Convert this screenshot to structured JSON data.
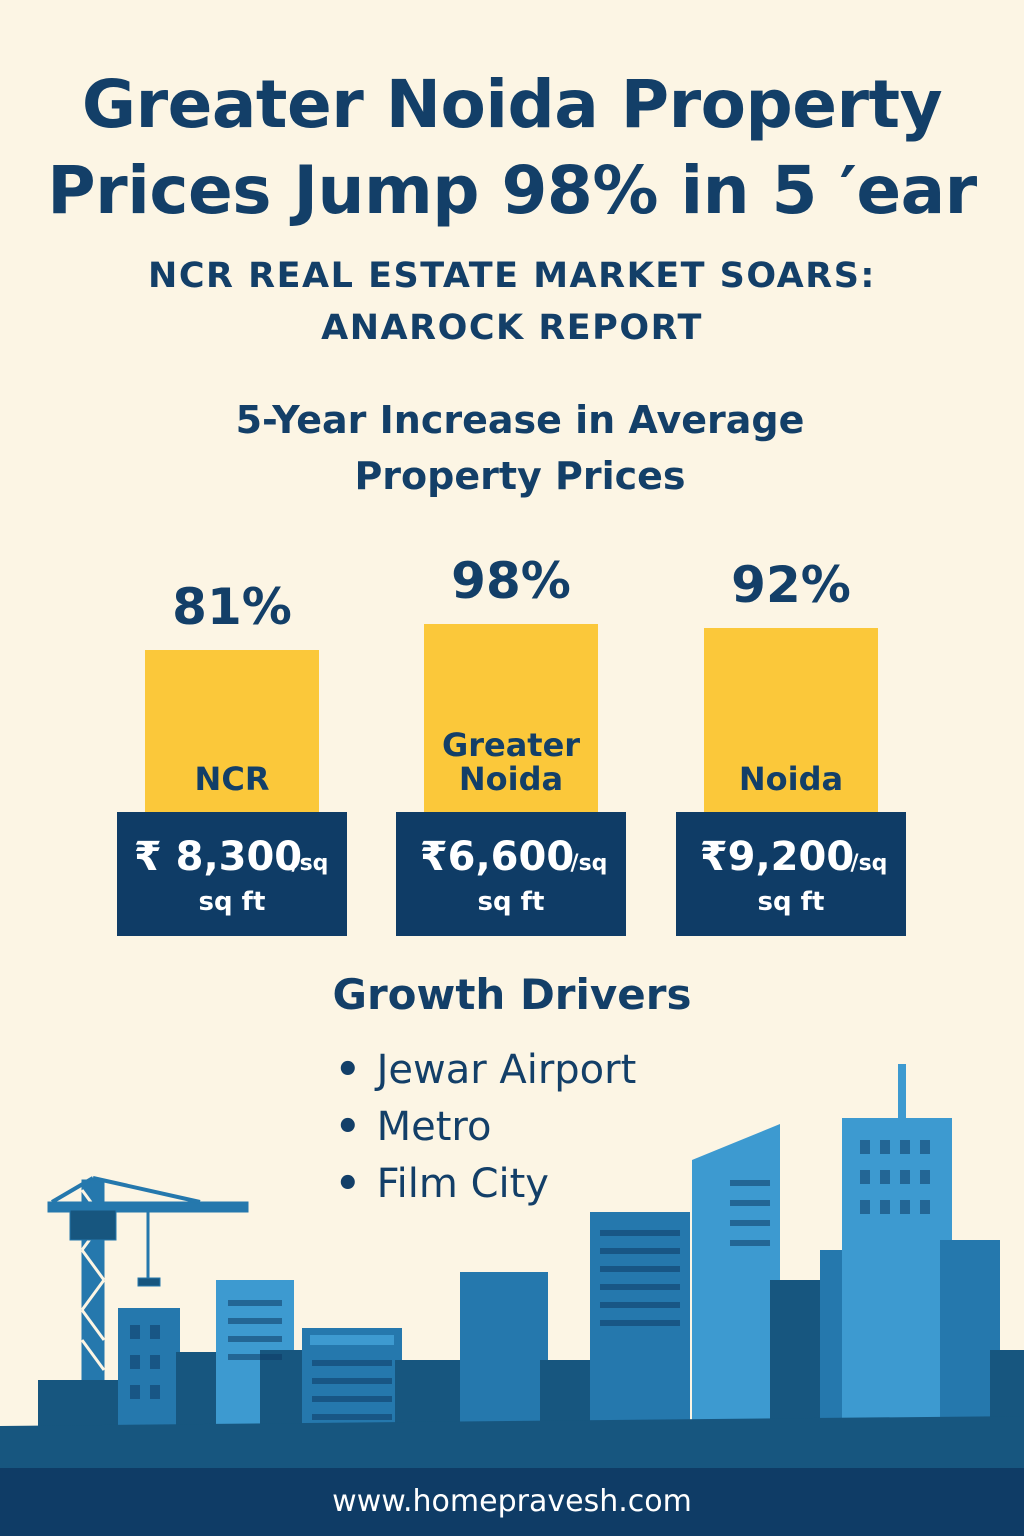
{
  "header": {
    "title_line1": "Greater Noida Property",
    "title_line2": "Prices Jump 98% in 5 ′ear",
    "subtitle_line1": "NCR REAL ESTATE MARKET SOARS:",
    "subtitle_line2": "ANAROCK REPORT"
  },
  "chart_data": {
    "type": "bar",
    "title": "5-Year Increase in Average Property Prices",
    "title_line1": "5-Year Increase in Average",
    "title_line2": "Property Prices",
    "categories": [
      "NCR",
      "Greater Noida",
      "Noida"
    ],
    "values": [
      81,
      98,
      92
    ],
    "value_labels": [
      "81%",
      "98%",
      "92%"
    ],
    "prices": [
      "₹ 8,300",
      "₹6,600",
      "₹9,200"
    ],
    "price_unit_top": "/sq",
    "price_unit_bottom": "sq ft",
    "bar_color": "#fbc83a",
    "price_box_color": "#0f3c66"
  },
  "drivers": {
    "title": "Growth Drivers",
    "items": [
      "Jewar Airport",
      "Metro",
      "Film City"
    ]
  },
  "footer": {
    "url": "www.homepravesh.com"
  },
  "colors": {
    "background": "#fcf5e4",
    "navy": "#133f68",
    "yellow": "#fbc83a",
    "skyline_dark": "#17567f",
    "skyline_mid": "#2578ad",
    "skyline_light": "#3d9ad0"
  }
}
